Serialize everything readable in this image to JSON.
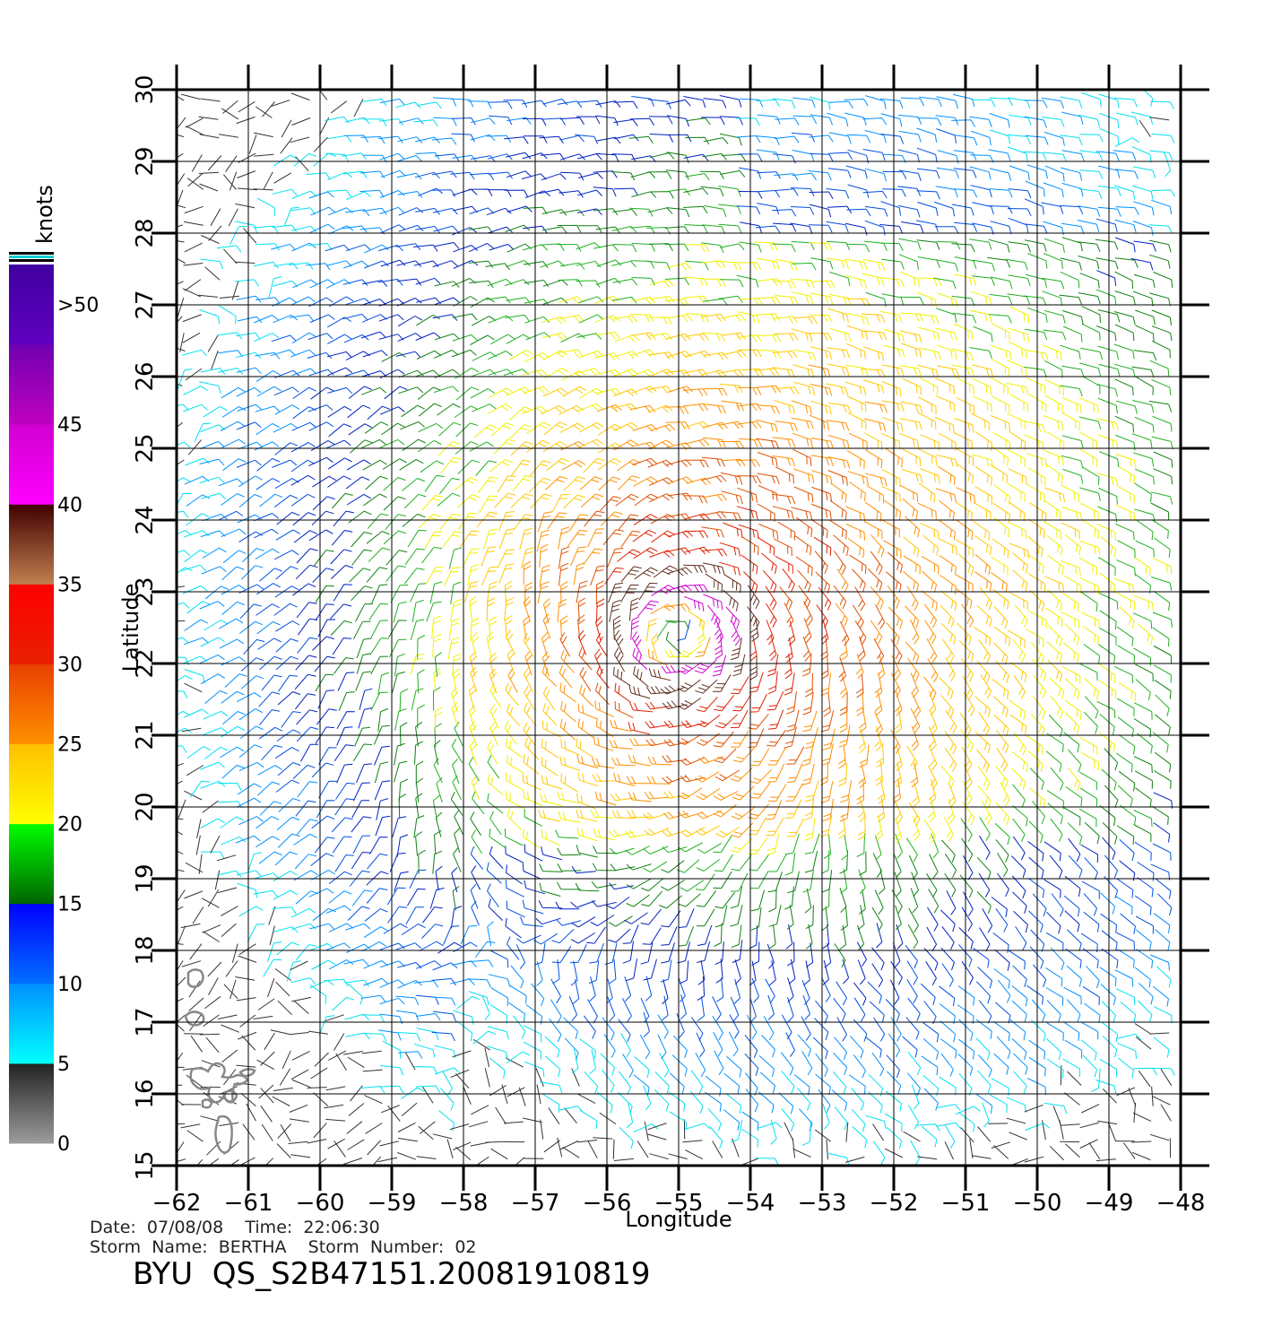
{
  "map": {
    "lon_range": [
      -62,
      -48
    ],
    "lat_range": [
      15,
      30
    ],
    "grid": true,
    "x_label": "Longitude",
    "y_label": "Latitude",
    "lon_ticks": [
      "−62",
      "−61",
      "−60",
      "−59",
      "−58",
      "−57",
      "−56",
      "−55",
      "−54",
      "−53",
      "−52",
      "−51",
      "−50",
      "−49",
      "−48"
    ],
    "lat_ticks": [
      "15",
      "16",
      "17",
      "18",
      "19",
      "20",
      "21",
      "22",
      "23",
      "24",
      "25",
      "26",
      "27",
      "28",
      "29",
      "30"
    ],
    "storm_center": {
      "lon": -55.0,
      "lat": 22.4
    },
    "land_color": "#888888"
  },
  "colorbar": {
    "unit": "knots",
    "labels": [
      ">50",
      "45",
      "40",
      "35",
      "30",
      "25",
      "20",
      "15",
      "10",
      "5",
      "0"
    ],
    "bands": [
      {
        "min": 0,
        "max": 5,
        "from": "#9c9c9c",
        "to": "#222222"
      },
      {
        "min": 5,
        "max": 10,
        "from": "#00ffff",
        "to": "#0090ff"
      },
      {
        "min": 10,
        "max": 15,
        "from": "#0070ff",
        "to": "#0000ff"
      },
      {
        "min": 15,
        "max": 20,
        "from": "#006400",
        "to": "#00ff00"
      },
      {
        "min": 20,
        "max": 25,
        "from": "#ffff00",
        "to": "#ffc000"
      },
      {
        "min": 25,
        "max": 30,
        "from": "#ff9000",
        "to": "#e84000"
      },
      {
        "min": 30,
        "max": 35,
        "from": "#e82000",
        "to": "#ff0000"
      },
      {
        "min": 35,
        "max": 40,
        "from": "#c08050",
        "to": "#400000"
      },
      {
        "min": 40,
        "max": 45,
        "from": "#ff00ff",
        "to": "#d000d0"
      },
      {
        "min": 45,
        "max": 50,
        "from": "#c000c0",
        "to": "#7000b0"
      },
      {
        "min": 50,
        "max": 55,
        "from": "#6000c0",
        "to": "#4000a0"
      }
    ]
  },
  "info": {
    "date_line": "Date:  07/08/08    Time:  22:06:30",
    "storm_line": "Storm  Name:  BERTHA    Storm  Number:  02",
    "product_id": "BYU  QS_S2B47151.20081910819"
  }
}
